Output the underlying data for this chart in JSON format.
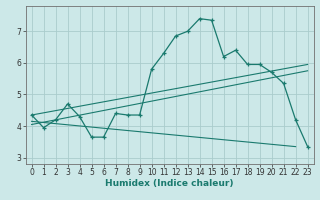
{
  "title": "",
  "xlabel": "Humidex (Indice chaleur)",
  "ylabel": "",
  "bg_color": "#cce8e8",
  "line_color": "#1a7a6e",
  "grid_color": "#aacccc",
  "xlim": [
    -0.5,
    23.5
  ],
  "ylim": [
    2.8,
    7.8
  ],
  "xticks": [
    0,
    1,
    2,
    3,
    4,
    5,
    6,
    7,
    8,
    9,
    10,
    11,
    12,
    13,
    14,
    15,
    16,
    17,
    18,
    19,
    20,
    21,
    22,
    23
  ],
  "yticks": [
    3,
    4,
    5,
    6,
    7
  ],
  "main_x": [
    0,
    1,
    2,
    3,
    4,
    5,
    6,
    7,
    8,
    9,
    10,
    11,
    12,
    13,
    14,
    15,
    16,
    17,
    18,
    19,
    20,
    21,
    22,
    23
  ],
  "main_y": [
    4.35,
    3.95,
    4.2,
    4.7,
    4.3,
    3.65,
    3.65,
    4.4,
    4.35,
    4.35,
    5.8,
    6.3,
    6.85,
    7.0,
    7.4,
    7.35,
    6.2,
    6.4,
    5.95,
    5.95,
    5.7,
    5.35,
    4.2,
    3.35
  ],
  "line2_x": [
    0,
    23
  ],
  "line2_y": [
    4.35,
    5.95
  ],
  "line3_x": [
    0,
    22
  ],
  "line3_y": [
    4.15,
    3.35
  ],
  "line4_x": [
    0,
    23
  ],
  "line4_y": [
    4.05,
    5.75
  ]
}
